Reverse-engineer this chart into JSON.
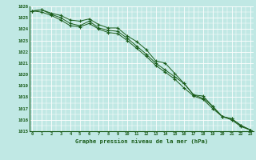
{
  "xlabel": "Graphe pression niveau de la mer (hPa)",
  "x_ticks": [
    0,
    1,
    2,
    3,
    4,
    5,
    6,
    7,
    8,
    9,
    10,
    11,
    12,
    13,
    14,
    15,
    16,
    17,
    18,
    19,
    20,
    21,
    22,
    23
  ],
  "ylim": [
    1015,
    1026
  ],
  "yticks": [
    1015,
    1016,
    1017,
    1018,
    1019,
    1020,
    1021,
    1022,
    1023,
    1024,
    1025,
    1026
  ],
  "bg_color": "#c0e8e4",
  "grid_color": "#ffffff",
  "line_color": "#1a5c1a",
  "series1": [
    1025.6,
    1025.7,
    1025.4,
    1025.2,
    1024.8,
    1024.7,
    1024.9,
    1024.4,
    1024.1,
    1024.1,
    1023.4,
    1022.9,
    1022.2,
    1021.2,
    1021.0,
    1020.1,
    1019.2,
    1018.2,
    1017.9,
    1017.2,
    1016.3,
    1016.1,
    1015.5,
    1015.1
  ],
  "series2": [
    1025.6,
    1025.7,
    1025.3,
    1025.0,
    1024.5,
    1024.3,
    1024.7,
    1024.1,
    1023.9,
    1023.8,
    1023.2,
    1022.5,
    1021.8,
    1021.0,
    1020.4,
    1019.8,
    1019.2,
    1018.2,
    1018.1,
    1017.2,
    1016.3,
    1016.1,
    1015.5,
    1015.1
  ],
  "series3": [
    1025.6,
    1025.5,
    1025.2,
    1024.8,
    1024.3,
    1024.2,
    1024.5,
    1024.0,
    1023.7,
    1023.6,
    1023.0,
    1022.3,
    1021.6,
    1020.8,
    1020.2,
    1019.6,
    1018.8,
    1018.1,
    1017.8,
    1017.0,
    1016.3,
    1016.0,
    1015.4,
    1015.1
  ]
}
